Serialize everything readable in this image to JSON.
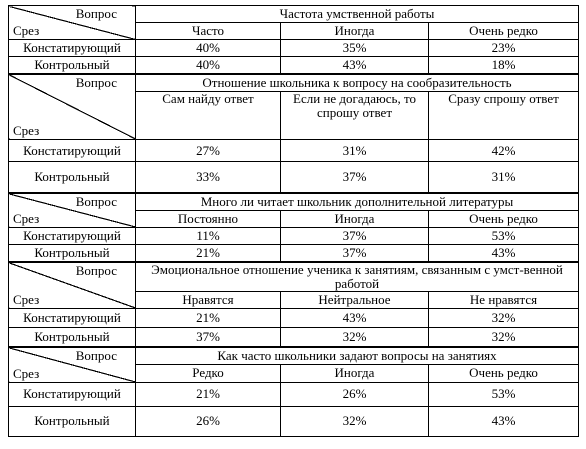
{
  "labels": {
    "question": "Вопрос",
    "slice": "Срез"
  },
  "rows_names": {
    "stating": "Констатирующий",
    "control": "Контрольный"
  },
  "sections": [
    {
      "title": "Частота умственной работы",
      "columns": [
        "Часто",
        "Иногда",
        "Очень редко"
      ],
      "stating": [
        "40%",
        "35%",
        "23%"
      ],
      "control": [
        "40%",
        "43%",
        "18%"
      ]
    },
    {
      "title": "Отношение школьника к вопросу на сообразительность",
      "columns": [
        "Сам найду ответ",
        "Если не догадаюсь, то спрошу ответ",
        "Сразу спрошу ответ"
      ],
      "stating": [
        "27%",
        "31%",
        "42%"
      ],
      "control": [
        "33%",
        "37%",
        "31%"
      ]
    },
    {
      "title": "Много ли читает школьник дополнительной литературы",
      "columns": [
        "Постоянно",
        "Иногда",
        "Очень редко"
      ],
      "stating": [
        "11%",
        "37%",
        "53%"
      ],
      "control": [
        "21%",
        "37%",
        "43%"
      ]
    },
    {
      "title": "Эмоциональное отношение ученика к занятиям, связанным с умст-венной работой",
      "columns": [
        "Нравятся",
        "Нейтральное",
        "Не нравятся"
      ],
      "stating": [
        "21%",
        "43%",
        "32%"
      ],
      "control": [
        "37%",
        "32%",
        "32%"
      ]
    },
    {
      "title": "Как часто школьники задают вопросы на занятиях",
      "columns": [
        "Редко",
        "Иногда",
        "Очень редко"
      ],
      "stating": [
        "21%",
        "26%",
        "53%"
      ],
      "control": [
        "26%",
        "32%",
        "43%"
      ]
    }
  ]
}
